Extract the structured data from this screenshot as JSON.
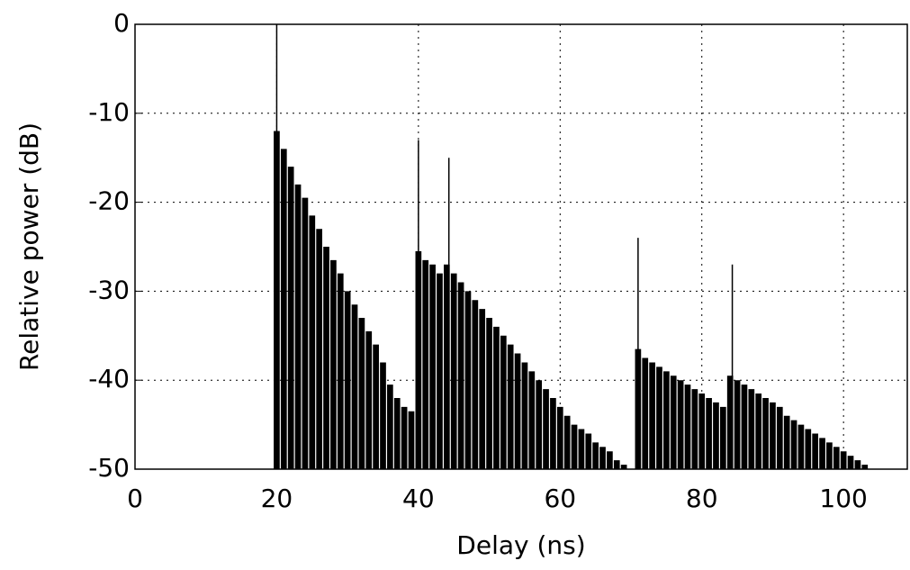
{
  "chart_data": {
    "type": "stem",
    "xlabel": "Delay (ns)",
    "ylabel": "Relative power (dB)",
    "xlim": [
      0,
      109
    ],
    "ylim": [
      -50,
      0
    ],
    "xticks": [
      0,
      20,
      40,
      60,
      80,
      100
    ],
    "yticks": [
      0,
      -10,
      -20,
      -30,
      -40,
      -50
    ],
    "grid": true,
    "series": [
      {
        "color": "#000000",
        "x": [
          20,
          21,
          22,
          23,
          24,
          25,
          26,
          27,
          28,
          29,
          30,
          31,
          32,
          33,
          34,
          35,
          36,
          37,
          38,
          39,
          40,
          41,
          42,
          43,
          44,
          45,
          46,
          47,
          48,
          49,
          50,
          51,
          52,
          53,
          54,
          55,
          56,
          57,
          58,
          59,
          60,
          61,
          62,
          63,
          64,
          65,
          66,
          67,
          68,
          69,
          71,
          72,
          73,
          74,
          75,
          76,
          77,
          78,
          79,
          80,
          81,
          82,
          83,
          84,
          85,
          86,
          87,
          88,
          89,
          90,
          91,
          92,
          93,
          94,
          95,
          96,
          97,
          98,
          99,
          100,
          101,
          102,
          103
        ],
        "values": [
          -12,
          -14,
          -16,
          -18,
          -19.5,
          -21.5,
          -23,
          -25,
          -26.5,
          -28,
          -30,
          -31.5,
          -33,
          -34.5,
          -36,
          -38,
          -40.5,
          -42,
          -43,
          -43.5,
          -25.5,
          -26.5,
          -27,
          -28,
          -27,
          -28,
          -29,
          -30,
          -31,
          -32,
          -33,
          -34,
          -35,
          -36,
          -37,
          -38,
          -39,
          -40,
          -41,
          -42,
          -43,
          -44,
          -45,
          -45.5,
          -46,
          -47,
          -47.5,
          -48,
          -49,
          -49.5,
          -36.5,
          -37.5,
          -38,
          -38.5,
          -39,
          -39.5,
          -40,
          -40.5,
          -41,
          -41.5,
          -42,
          -42.5,
          -43,
          -39.5,
          -40,
          -40.5,
          -41,
          -41.5,
          -42,
          -42.5,
          -43,
          -44,
          -44.5,
          -45,
          -45.5,
          -46,
          -46.5,
          -47,
          -47.5,
          -48,
          -48.5,
          -49,
          -49.5
        ]
      },
      {
        "color": "#000000",
        "x": [
          20,
          40,
          44.3,
          71,
          84.3
        ],
        "values": [
          0,
          -13,
          -15,
          -24,
          -27
        ]
      }
    ]
  }
}
